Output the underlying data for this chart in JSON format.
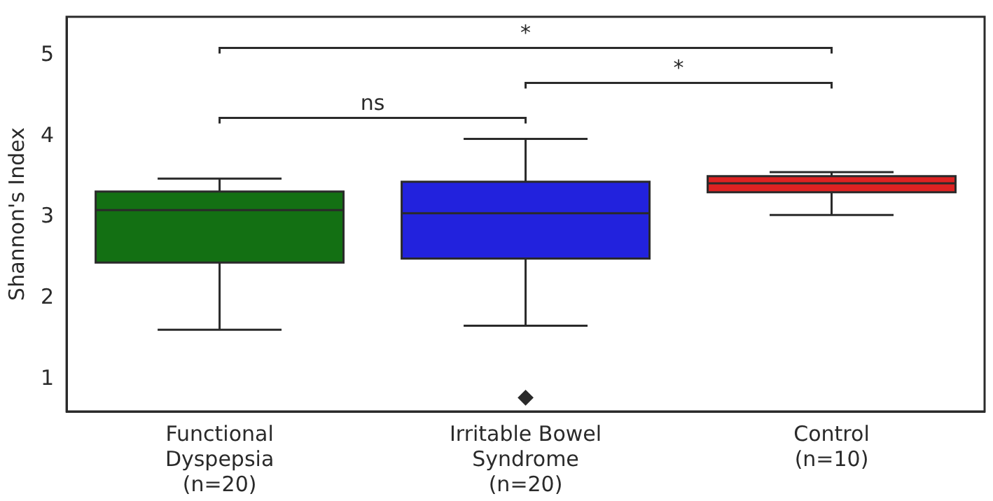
{
  "chart_data": {
    "type": "box",
    "ylabel": "Shannon's Index",
    "categories": [
      "Functional\nDyspepsia\n(n=20)",
      "Irritable Bowel\nSyndrome\n(n=20)",
      "Control\n(n=10)"
    ],
    "colors": [
      "#137013",
      "#2222dd",
      "#dd2222"
    ],
    "boxes": [
      {
        "low": 1.61,
        "q1": 2.44,
        "median": 3.09,
        "q3": 3.32,
        "high": 3.48
      },
      {
        "low": 1.66,
        "q1": 2.49,
        "median": 3.05,
        "q3": 3.44,
        "high": 3.97,
        "outliers": [
          0.77
        ]
      },
      {
        "low": 3.03,
        "q1": 3.31,
        "median": 3.42,
        "q3": 3.51,
        "high": 3.56
      }
    ],
    "ylim": [
      0.6,
      5.48
    ],
    "yticks": [
      1,
      2,
      3,
      4,
      5
    ],
    "grid": false,
    "legend": false,
    "annotations": [
      "ns",
      "*",
      "*"
    ]
  }
}
